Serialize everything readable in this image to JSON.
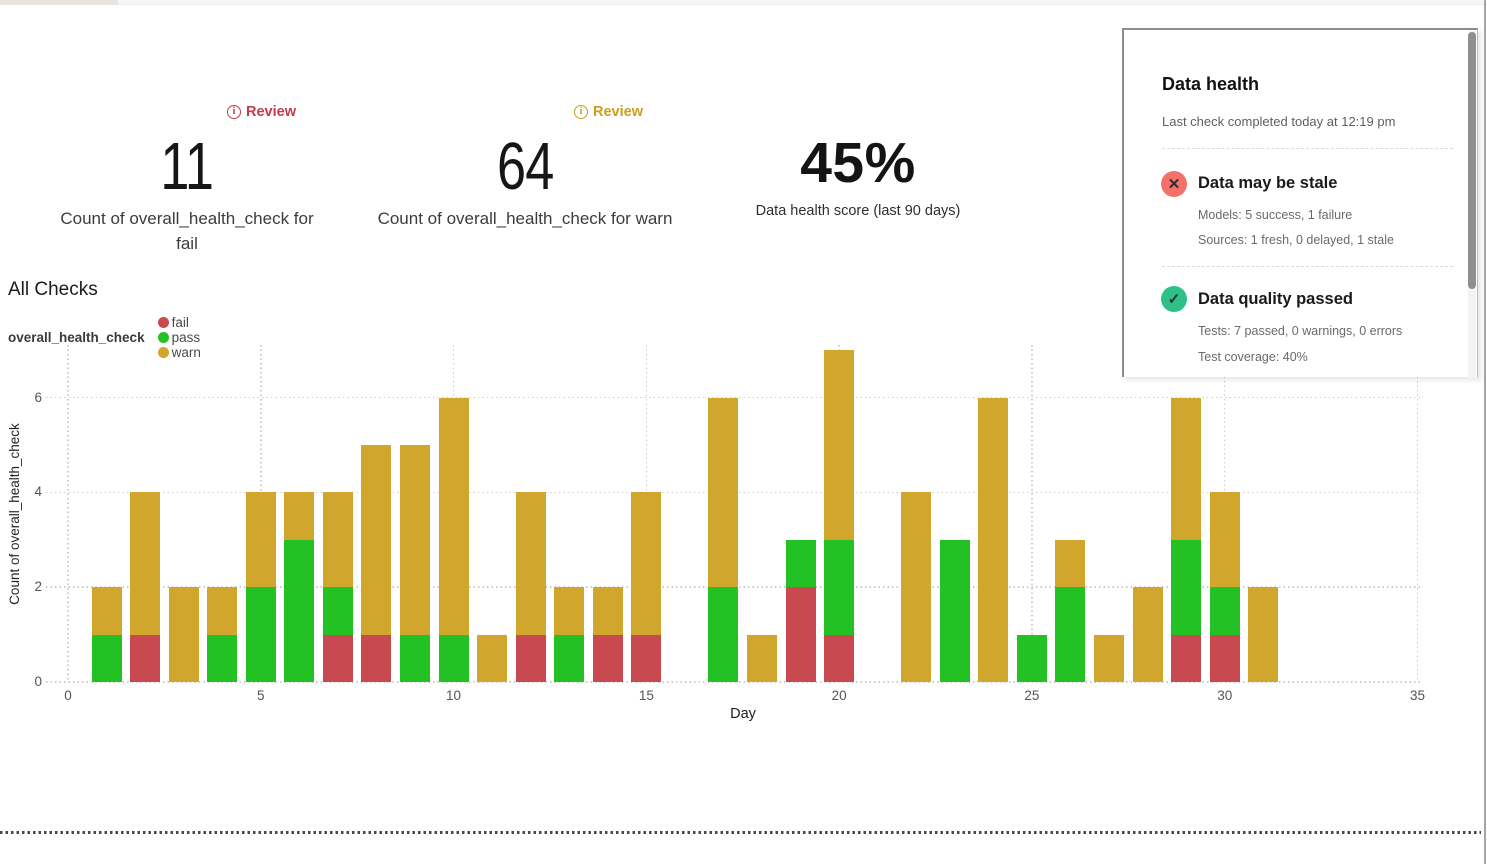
{
  "kpis": [
    {
      "review_label": "Review",
      "review_color": "#c23a4b",
      "value": "11",
      "label": "Count of overall_health_check for fail"
    },
    {
      "review_label": "Review",
      "review_color": "#cc9e1c",
      "value": "64",
      "label": "Count of overall_health_check for warn"
    },
    {
      "value": "45%",
      "label": "Data health score (last 90 days)"
    }
  ],
  "chart": {
    "title": "All Checks",
    "series_label": "overall_health_check",
    "legend": [
      {
        "name": "fail",
        "color": "#c84a50"
      },
      {
        "name": "pass",
        "color": "#24c124"
      },
      {
        "name": "warn",
        "color": "#d0a72c"
      }
    ],
    "xlabel": "Day",
    "ylabel": "Count of overall_health_check"
  },
  "chart_data": {
    "type": "bar",
    "stacked": true,
    "title": "All Checks",
    "xlabel": "Day",
    "ylabel": "Count of overall_health_check",
    "x_ticks": [
      0,
      5,
      10,
      15,
      20,
      25,
      30,
      35
    ],
    "y_ticks": [
      0,
      2,
      4,
      6
    ],
    "xlim": [
      0,
      35
    ],
    "ylim": [
      0,
      7
    ],
    "grid": true,
    "stack_order": [
      "fail",
      "pass",
      "warn"
    ],
    "colors": {
      "fail": "#c84a50",
      "pass": "#24c124",
      "warn": "#d0a72c"
    },
    "bars": [
      {
        "day": 1,
        "fail": 0,
        "pass": 1,
        "warn": 1
      },
      {
        "day": 2,
        "fail": 1,
        "pass": 0,
        "warn": 3
      },
      {
        "day": 3,
        "fail": 0,
        "pass": 0,
        "warn": 2
      },
      {
        "day": 4,
        "fail": 0,
        "pass": 1,
        "warn": 1
      },
      {
        "day": 5,
        "fail": 0,
        "pass": 2,
        "warn": 2
      },
      {
        "day": 6,
        "fail": 0,
        "pass": 3,
        "warn": 1
      },
      {
        "day": 7,
        "fail": 1,
        "pass": 1,
        "warn": 2
      },
      {
        "day": 8,
        "fail": 1,
        "pass": 0,
        "warn": 4
      },
      {
        "day": 9,
        "fail": 0,
        "pass": 1,
        "warn": 4
      },
      {
        "day": 10,
        "fail": 0,
        "pass": 1,
        "warn": 5
      },
      {
        "day": 11,
        "fail": 0,
        "pass": 0,
        "warn": 1
      },
      {
        "day": 12,
        "fail": 1,
        "pass": 0,
        "warn": 3
      },
      {
        "day": 13,
        "fail": 0,
        "pass": 1,
        "warn": 1
      },
      {
        "day": 14,
        "fail": 1,
        "pass": 0,
        "warn": 1
      },
      {
        "day": 15,
        "fail": 1,
        "pass": 0,
        "warn": 3
      },
      {
        "day": 17,
        "fail": 0,
        "pass": 2,
        "warn": 4
      },
      {
        "day": 18,
        "fail": 0,
        "pass": 0,
        "warn": 1
      },
      {
        "day": 19,
        "fail": 2,
        "pass": 1,
        "warn": 0
      },
      {
        "day": 20,
        "fail": 1,
        "pass": 2,
        "warn": 4
      },
      {
        "day": 22,
        "fail": 0,
        "pass": 0,
        "warn": 4
      },
      {
        "day": 23,
        "fail": 0,
        "pass": 3,
        "warn": 0
      },
      {
        "day": 24,
        "fail": 0,
        "pass": 0,
        "warn": 6
      },
      {
        "day": 25,
        "fail": 0,
        "pass": 1,
        "warn": 0
      },
      {
        "day": 26,
        "fail": 0,
        "pass": 2,
        "warn": 1
      },
      {
        "day": 27,
        "fail": 0,
        "pass": 0,
        "warn": 1
      },
      {
        "day": 28,
        "fail": 0,
        "pass": 0,
        "warn": 2
      },
      {
        "day": 29,
        "fail": 1,
        "pass": 2,
        "warn": 3
      },
      {
        "day": 30,
        "fail": 1,
        "pass": 1,
        "warn": 2
      },
      {
        "day": 31,
        "fail": 0,
        "pass": 0,
        "warn": 2
      }
    ]
  },
  "panel": {
    "title": "Data health",
    "subtitle": "Last check completed today at 12:19 pm",
    "items": [
      {
        "icon": "x-circle-icon",
        "glyph": "✕",
        "icon_color": "#f4716a",
        "title": "Data may be stale",
        "details": [
          "Models: 5 success, 1 failure",
          "Sources: 1 fresh, 0 delayed, 1 stale"
        ]
      },
      {
        "icon": "check-circle-icon",
        "glyph": "✓",
        "icon_color": "#2dc189",
        "title": "Data quality passed",
        "details": [
          "Tests: 7 passed, 0 warnings, 0 errors",
          "Test coverage: 40%"
        ]
      }
    ]
  }
}
